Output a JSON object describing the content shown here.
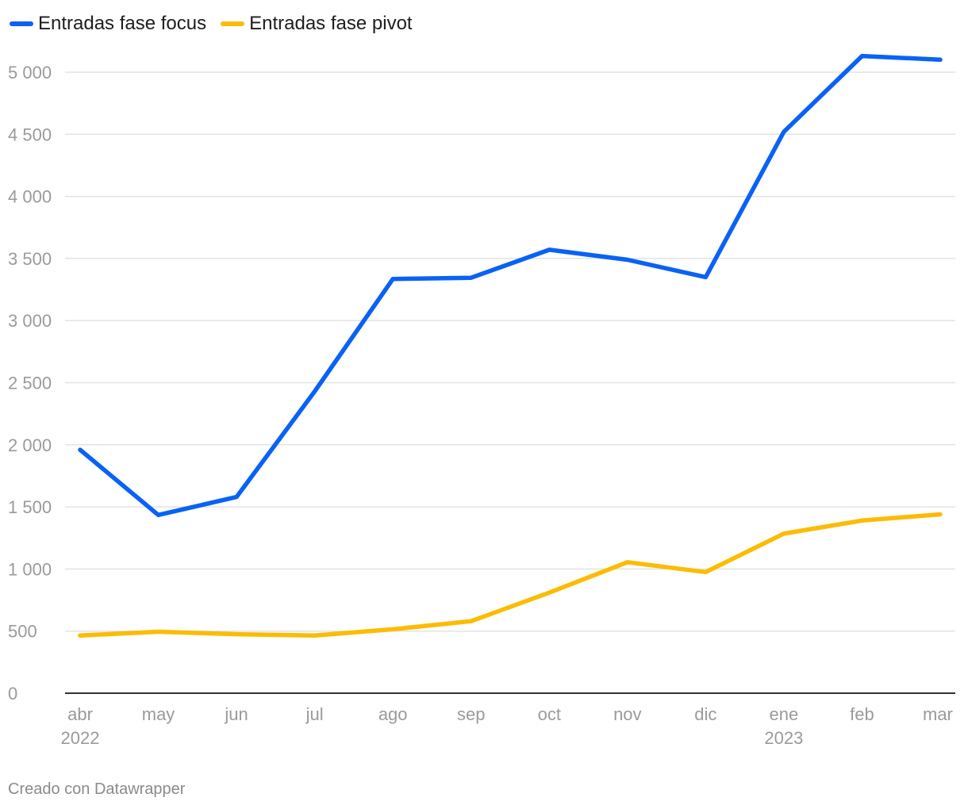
{
  "legend": [
    {
      "label": "Entradas fase focus",
      "color": "#0a62f5"
    },
    {
      "label": "Entradas fase pivot",
      "color": "#fbbc04"
    }
  ],
  "footer": {
    "credit": "Creado con Datawrapper"
  },
  "chart_data": {
    "type": "line",
    "categories": [
      "abr",
      "may",
      "jun",
      "jul",
      "ago",
      "sep",
      "oct",
      "nov",
      "dic",
      "ene",
      "feb",
      "mar"
    ],
    "year_labels": {
      "abr": "2022",
      "ene": "2023"
    },
    "y_ticks": [
      0,
      500,
      1000,
      1500,
      2000,
      2500,
      3000,
      3500,
      4000,
      4500,
      5000
    ],
    "y_tick_labels": [
      "0",
      "500",
      "1 000",
      "1 500",
      "2 000",
      "2 500",
      "3 000",
      "3 500",
      "4 000",
      "4 500",
      "5 000"
    ],
    "ylim": [
      0,
      5200
    ],
    "grid": true,
    "legend_position": "top-left",
    "series": [
      {
        "name": "Entradas fase focus",
        "color": "#0a62f5",
        "values": [
          1960,
          1435,
          1580,
          2430,
          3335,
          3345,
          3570,
          3490,
          3350,
          4520,
          5130,
          5100
        ]
      },
      {
        "name": "Entradas fase pivot",
        "color": "#fbbc04",
        "values": [
          465,
          495,
          475,
          465,
          515,
          580,
          810,
          1055,
          975,
          1285,
          1390,
          1440
        ]
      }
    ]
  }
}
